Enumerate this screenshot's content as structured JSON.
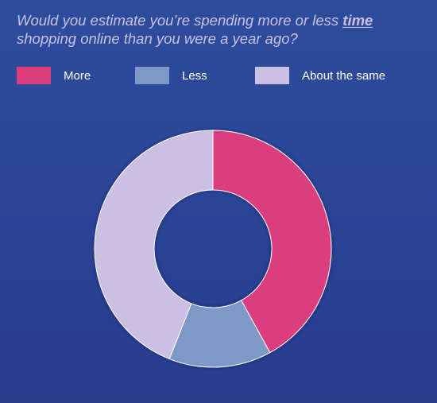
{
  "header": {
    "title_part1": "Would you estimate you’re spending more or less ",
    "title_emphasis": "time",
    "title_part2": " shopping online than you were a year ago?"
  },
  "chart_data": {
    "type": "pie",
    "variant": "donut",
    "title": "Would you estimate you’re spending more or less time shopping online than you were a year ago?",
    "legend_placement": "top",
    "categories": [
      "More",
      "Less",
      "About the same"
    ],
    "values": [
      42,
      14,
      44
    ],
    "colors": [
      "#dc3d7b",
      "#8098c9",
      "#cbbfe3"
    ],
    "start_angle_deg": 0,
    "direction": "clockwise"
  },
  "colors": {
    "background": "#2b4396",
    "title_text": "#c9c0e6",
    "legend_text": "#ffffff"
  }
}
